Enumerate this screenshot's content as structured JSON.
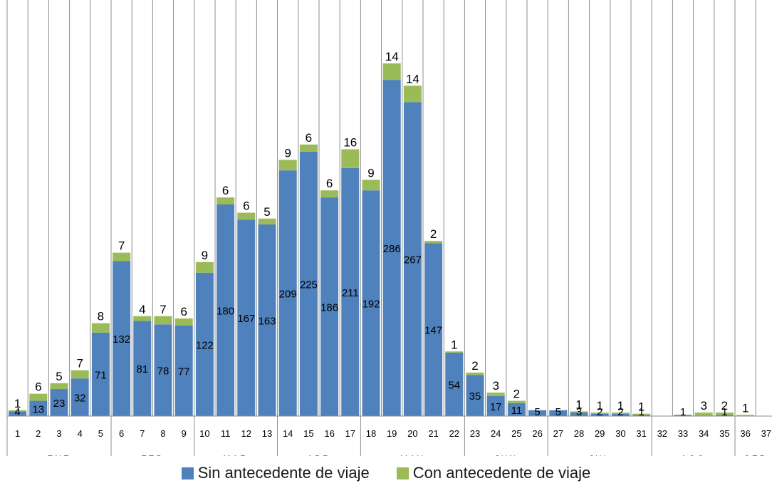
{
  "chart_data": {
    "type": "bar",
    "stacked": true,
    "title": "",
    "xlabel": "",
    "ylabel": "",
    "ylim": [
      0,
      320
    ],
    "grid": "vertical lines between weeks",
    "legend_position": "bottom",
    "x": [
      1,
      2,
      3,
      4,
      5,
      6,
      7,
      8,
      9,
      10,
      11,
      12,
      13,
      14,
      15,
      16,
      17,
      18,
      19,
      20,
      21,
      22,
      23,
      24,
      25,
      26,
      27,
      28,
      29,
      30,
      31,
      32,
      33,
      34,
      35,
      36,
      37
    ],
    "x_labels": [
      "1",
      "2",
      "3",
      "4",
      "5",
      "6",
      "7",
      "8",
      "9",
      "10",
      "11",
      "12",
      "13",
      "14",
      "15",
      "16",
      "17",
      "18",
      "19",
      "20",
      "21",
      "22",
      "23",
      "24",
      "25",
      "26",
      "27",
      "28",
      "29",
      "30",
      "31",
      "32",
      "33",
      "34",
      "35",
      "36",
      "37"
    ],
    "months": [
      {
        "label": "ENE",
        "start": 1,
        "end": 5
      },
      {
        "label": "FEB",
        "start": 6,
        "end": 9
      },
      {
        "label": "MAR",
        "start": 10,
        "end": 13
      },
      {
        "label": "ABR",
        "start": 14,
        "end": 17
      },
      {
        "label": "MAY",
        "start": 18,
        "end": 22
      },
      {
        "label": "JUN",
        "start": 23,
        "end": 26
      },
      {
        "label": "JUL",
        "start": 27,
        "end": 31
      },
      {
        "label": "AGO",
        "start": 32,
        "end": 35
      },
      {
        "label": "SEP",
        "start": 36,
        "end": 37
      }
    ],
    "series": [
      {
        "name": "Sin antecedente de viaje",
        "color": "#4F81BD",
        "values": [
          4,
          13,
          23,
          32,
          71,
          132,
          81,
          78,
          77,
          122,
          180,
          167,
          163,
          209,
          225,
          186,
          211,
          192,
          286,
          267,
          147,
          54,
          35,
          17,
          11,
          5,
          5,
          3,
          2,
          2,
          1,
          0,
          1,
          0,
          1,
          0,
          0
        ],
        "labels": [
          "4",
          "13",
          "23",
          "32",
          "71",
          "132",
          "81",
          "78",
          "77",
          "122",
          "180",
          "167",
          "163",
          "209",
          "225",
          "186",
          "211",
          "192",
          "286",
          "267",
          "147",
          "54",
          "35",
          "17",
          "11",
          "5",
          "5",
          "3",
          "2",
          "2",
          "1",
          "",
          "1",
          "",
          "1",
          "",
          ""
        ]
      },
      {
        "name": "Con antecedente de viaje",
        "color": "#9BBB59",
        "values": [
          1,
          6,
          5,
          7,
          8,
          7,
          4,
          7,
          6,
          9,
          6,
          6,
          5,
          9,
          6,
          6,
          16,
          9,
          14,
          14,
          2,
          1,
          2,
          3,
          2,
          0,
          0,
          1,
          1,
          1,
          1,
          0,
          0,
          3,
          2,
          1,
          0
        ],
        "labels": [
          "1",
          "6",
          "5",
          "7",
          "8",
          "7",
          "4",
          "7",
          "6",
          "9",
          "6",
          "6",
          "5",
          "9",
          "6",
          "6",
          "16",
          "9",
          "14",
          "14",
          "2",
          "1",
          "2",
          "3",
          "2",
          "",
          "",
          "1",
          "1",
          "1",
          "1",
          "",
          "",
          "3",
          "2",
          "1",
          ""
        ]
      }
    ]
  }
}
